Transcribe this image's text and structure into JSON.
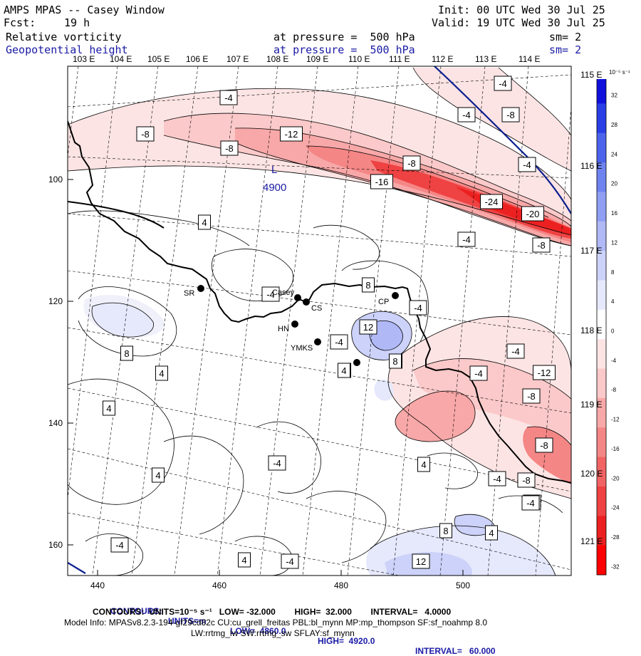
{
  "header": {
    "title": "AMPS MPAS -- Casey Window",
    "fcst_label": "Fcst:",
    "fcst_value": "19 h",
    "init": "Init: 00 UTC Wed 30 Jul 25",
    "valid": "Valid: 19 UTC Wed 30 Jul 25",
    "field1_name": "Relative vorticity",
    "field1_level": "at pressure =  500 hPa",
    "field1_sm": "sm= 2",
    "field2_name": "Geopotential height",
    "field2_level": "at pressure =  500 hPa",
    "field2_sm": "sm= 2"
  },
  "top_lon_labels": [
    "103 E",
    "104 E",
    "105 E",
    "106 E",
    "107 E",
    "108 E",
    "109 E",
    "110 E",
    "111 E",
    "112 E",
    "113 E",
    "114 E"
  ],
  "right_lon_labels": [
    "115 E",
    "116 E",
    "117 E",
    "118 E",
    "119 E",
    "120 E",
    "121 E"
  ],
  "x_tick_labels": [
    "440",
    "460",
    "480",
    "500"
  ],
  "y_tick_labels": [
    "100",
    "120",
    "140",
    "160"
  ],
  "colorbar": {
    "unit_label": "10⁻⁵ s⁻¹",
    "labels": [
      "32",
      "28",
      "24",
      "20",
      "16",
      "12",
      "8",
      "4",
      "0",
      "-4",
      "-8",
      "-12",
      "-16",
      "-20",
      "-24",
      "-28",
      "-32"
    ],
    "colors": [
      "#1010dd",
      "#2a3ee6",
      "#4c63ec",
      "#6f83f0",
      "#909ff3",
      "#b0b9f6",
      "#ccd2f9",
      "#e6e9fc",
      "#ffffff",
      "#fde4e4",
      "#fbc9c9",
      "#f8a8a8",
      "#f58686",
      "#f26464",
      "#ef4242",
      "#ec2020",
      "#ff0000"
    ]
  },
  "height_label": "4900",
  "height_low_marker": "L",
  "contour_labels": [
    "-4",
    "-8",
    "-4",
    "-4",
    "-12",
    "-8",
    "-8",
    "-8",
    "-4",
    "-16",
    "-24",
    "-20",
    "-8",
    "-4",
    "4",
    "8",
    "-4",
    "-4",
    "12",
    "-4",
    "4",
    "8",
    "-4",
    "-12",
    "8",
    "4",
    "-4",
    "-8",
    "4",
    "-8",
    "4",
    "-4",
    "-4",
    "-8",
    "-4",
    "4",
    "8",
    "4",
    "12",
    "-4",
    "4",
    "-4",
    "-4",
    "8",
    "4"
  ],
  "stations": [
    "SR",
    "Casey",
    "CS",
    "CP",
    "HN",
    "YMKS"
  ],
  "footer": {
    "line1_contours": "CONTOURS:",
    "line1_units": "UNITS=m",
    "line1_low": "LOW=  4860.0",
    "line1_high": "HIGH=  4920.0",
    "line1_interval": "INTERVAL=   60.000",
    "line2": "CONTOURS:  UNITS=10⁻⁵ s⁻¹   LOW= -32.000        HIGH=  32.000        INTERVAL=   4.0000",
    "line3": "Model Info: MPASv8.2.3-194-gf29cd82c CU:cu_grell_freitas PBL:bl_mynn MP:mp_thompson SF:sf_noahmp 8.0",
    "line4": "LW:rrtmg_lw SW:rrtmg_sw SFLAY:sf_mynn"
  }
}
